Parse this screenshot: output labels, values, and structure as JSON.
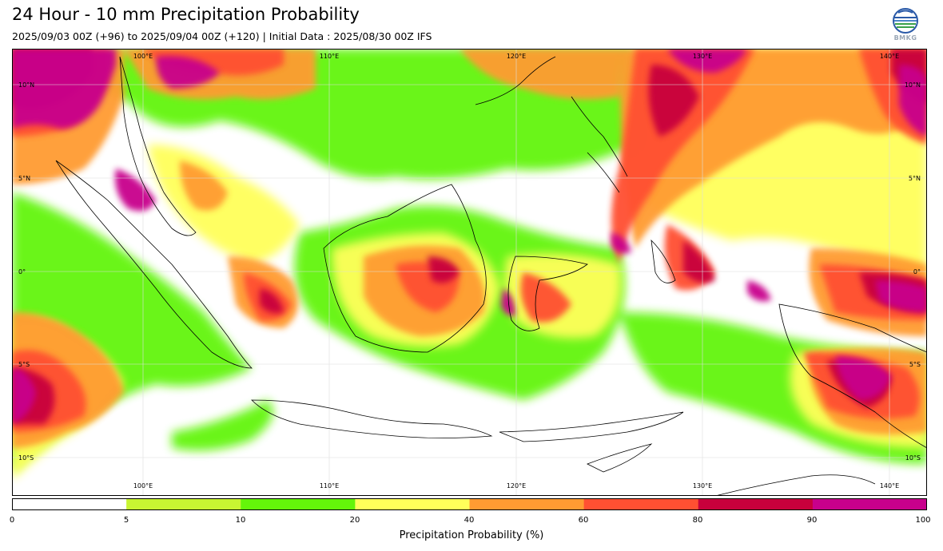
{
  "title": "24 Hour - 10 mm Precipitation Probability",
  "subtitle": "2025/09/03 00Z (+96) to 2025/09/04 00Z (+120) | Initial Data : 2025/08/30 00Z IFS",
  "logo": {
    "text": "BMKG",
    "icon": "bmkg-logo-icon"
  },
  "map": {
    "lon_labels_top": [
      "100°E",
      "110°E",
      "120°E",
      "130°E",
      "140°E"
    ],
    "lon_labels_bottom": [
      "100°E",
      "110°E",
      "120°E",
      "130°E",
      "140°E"
    ],
    "lat_labels_left": [
      "10°N",
      "5°N",
      "0°",
      "5°S",
      "10°S"
    ],
    "lat_labels_right": [
      "10°N",
      "5°N",
      "0°",
      "5°S",
      "10°S"
    ],
    "lon_values": [
      100,
      110,
      120,
      130,
      140
    ],
    "lat_values": [
      10,
      5,
      0,
      -5,
      -10
    ],
    "extent": {
      "lon_min": 93,
      "lon_max": 142,
      "lat_min": -11.5,
      "lat_max": 12.5
    }
  },
  "colorbar": {
    "title": "Precipitation Probability (%)",
    "tick_labels": [
      "0",
      "5",
      "10",
      "20",
      "40",
      "60",
      "80",
      "90",
      "100"
    ],
    "colors": [
      "#ffffff",
      "#c8f532",
      "#64f50a",
      "#ffff5a",
      "#ff9b32",
      "#ff5032",
      "#c8003c",
      "#c8008c"
    ]
  }
}
